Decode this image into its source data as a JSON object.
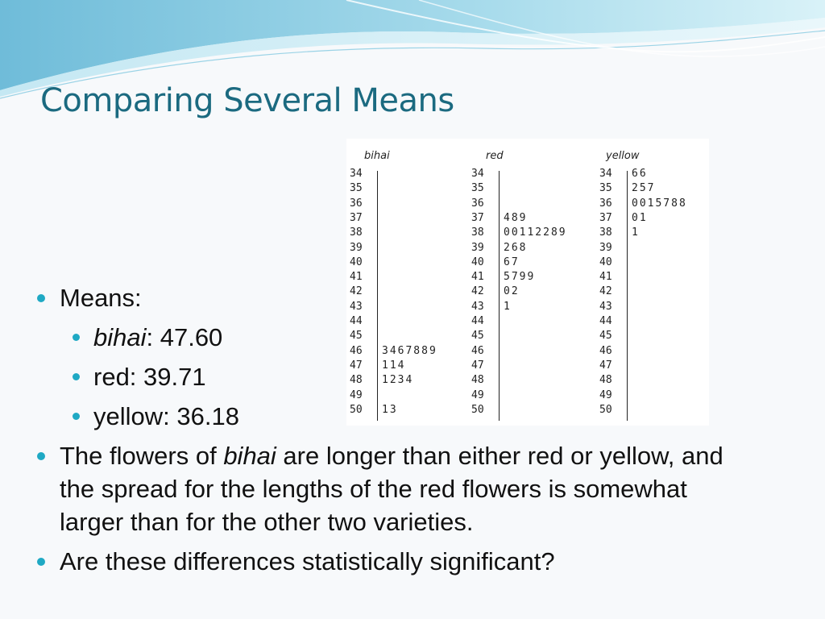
{
  "title": "Comparing Several Means",
  "stemplot": {
    "columns": [
      {
        "header": "bihai",
        "rows": [
          {
            "stem": "34",
            "leaves": ""
          },
          {
            "stem": "35",
            "leaves": ""
          },
          {
            "stem": "36",
            "leaves": ""
          },
          {
            "stem": "37",
            "leaves": ""
          },
          {
            "stem": "38",
            "leaves": ""
          },
          {
            "stem": "39",
            "leaves": ""
          },
          {
            "stem": "40",
            "leaves": ""
          },
          {
            "stem": "41",
            "leaves": ""
          },
          {
            "stem": "42",
            "leaves": ""
          },
          {
            "stem": "43",
            "leaves": ""
          },
          {
            "stem": "44",
            "leaves": ""
          },
          {
            "stem": "45",
            "leaves": ""
          },
          {
            "stem": "46",
            "leaves": "3467889"
          },
          {
            "stem": "47",
            "leaves": "114"
          },
          {
            "stem": "48",
            "leaves": "1234"
          },
          {
            "stem": "49",
            "leaves": ""
          },
          {
            "stem": "50",
            "leaves": "13"
          }
        ]
      },
      {
        "header": "red",
        "rows": [
          {
            "stem": "34",
            "leaves": ""
          },
          {
            "stem": "35",
            "leaves": ""
          },
          {
            "stem": "36",
            "leaves": ""
          },
          {
            "stem": "37",
            "leaves": "489"
          },
          {
            "stem": "38",
            "leaves": "00112289"
          },
          {
            "stem": "39",
            "leaves": "268"
          },
          {
            "stem": "40",
            "leaves": "67"
          },
          {
            "stem": "41",
            "leaves": "5799"
          },
          {
            "stem": "42",
            "leaves": "02"
          },
          {
            "stem": "43",
            "leaves": "1"
          },
          {
            "stem": "44",
            "leaves": ""
          },
          {
            "stem": "45",
            "leaves": ""
          },
          {
            "stem": "46",
            "leaves": ""
          },
          {
            "stem": "47",
            "leaves": ""
          },
          {
            "stem": "48",
            "leaves": ""
          },
          {
            "stem": "49",
            "leaves": ""
          },
          {
            "stem": "50",
            "leaves": ""
          }
        ]
      },
      {
        "header": "yellow",
        "rows": [
          {
            "stem": "34",
            "leaves": "66"
          },
          {
            "stem": "35",
            "leaves": "257"
          },
          {
            "stem": "36",
            "leaves": "0015788"
          },
          {
            "stem": "37",
            "leaves": "01"
          },
          {
            "stem": "38",
            "leaves": "1"
          },
          {
            "stem": "39",
            "leaves": ""
          },
          {
            "stem": "40",
            "leaves": ""
          },
          {
            "stem": "41",
            "leaves": ""
          },
          {
            "stem": "42",
            "leaves": ""
          },
          {
            "stem": "43",
            "leaves": ""
          },
          {
            "stem": "44",
            "leaves": ""
          },
          {
            "stem": "45",
            "leaves": ""
          },
          {
            "stem": "46",
            "leaves": ""
          },
          {
            "stem": "47",
            "leaves": ""
          },
          {
            "stem": "48",
            "leaves": ""
          },
          {
            "stem": "49",
            "leaves": ""
          },
          {
            "stem": "50",
            "leaves": ""
          }
        ]
      }
    ]
  },
  "bullets": {
    "means_label": "Means:",
    "bihai_name": "bihai",
    "bihai_value": ":  47.60",
    "red": "red:  39.71",
    "yellow": "yellow:  36.18",
    "flowers_pre": "The flowers of ",
    "flowers_italic": "bihai",
    "flowers_post": " are longer than either red or yellow, and",
    "flowers_line2": "the spread for the lengths of the red flowers is somewhat",
    "flowers_line3": "larger than for the other two varieties.",
    "question": "Are these differences statistically significant?"
  },
  "colors": {
    "title": "#1b6a80",
    "bullet": "#1fa9c4",
    "wave_dark": "#7fc6e0",
    "wave_light": "#cdeef7"
  }
}
